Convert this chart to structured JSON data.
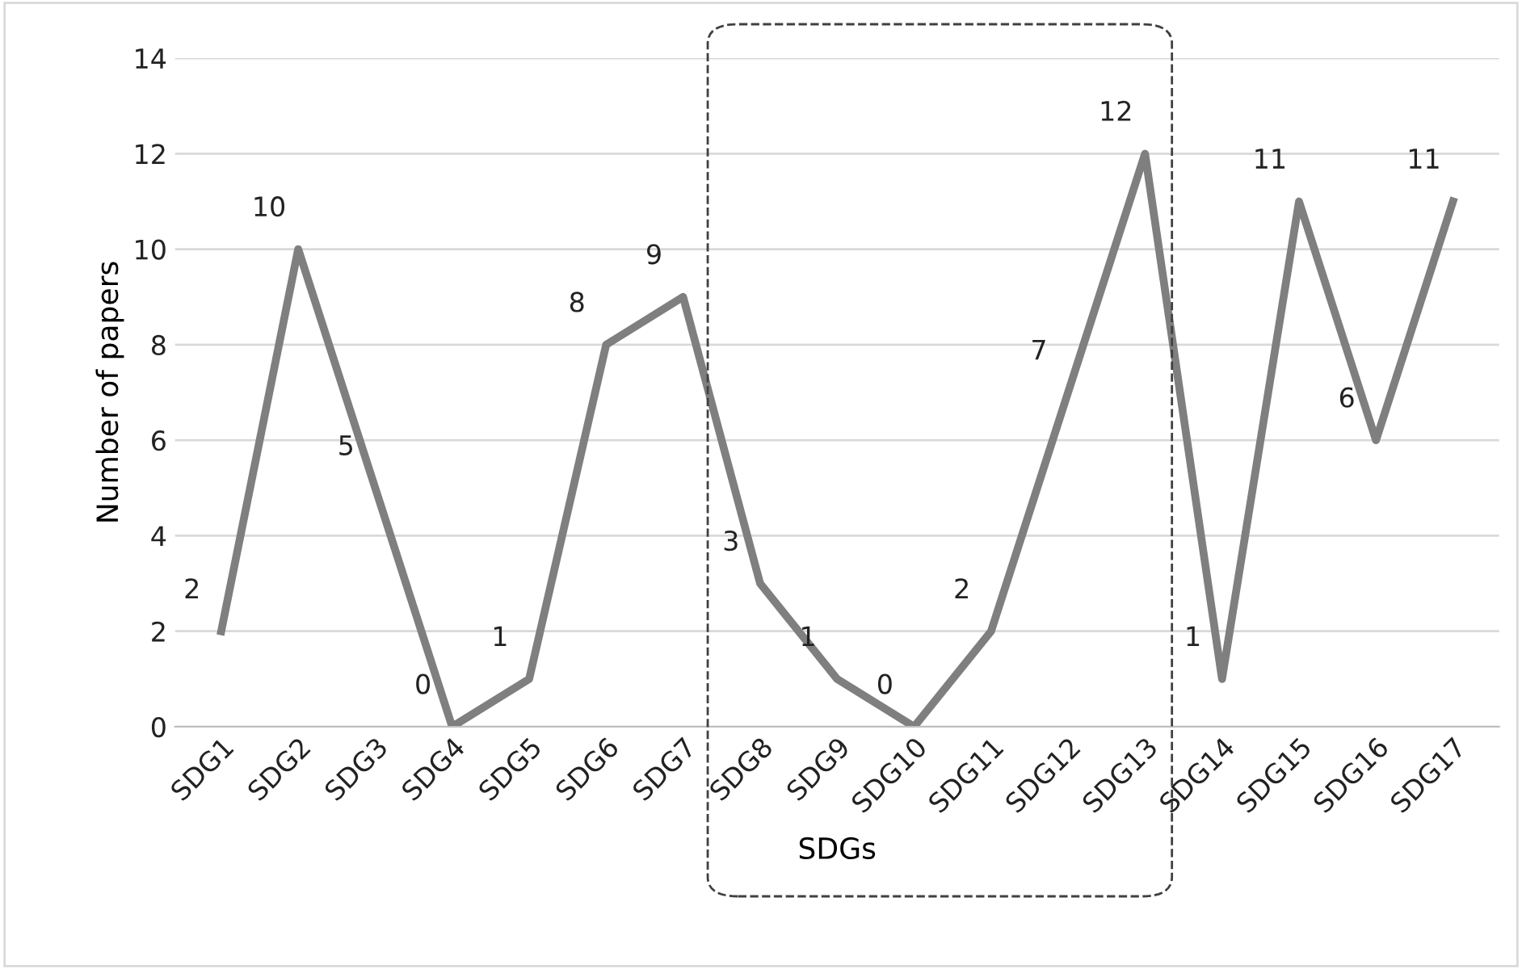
{
  "chart_data": {
    "type": "line",
    "xlabel": "SDGs",
    "ylabel": "Number of papers",
    "categories": [
      "SDG1",
      "SDG2",
      "SDG3",
      "SDG4",
      "SDG5",
      "SDG6",
      "SDG7",
      "SDG8",
      "SDG9",
      "SDG10",
      "SDG11",
      "SDG12",
      "SDG13",
      "SDG14",
      "SDG15",
      "SDG16",
      "SDG17"
    ],
    "series": [
      {
        "color": "#7f7f7f",
        "values": [
          2,
          10,
          5,
          0,
          1,
          8,
          9,
          3,
          1,
          0,
          2,
          7,
          12,
          1,
          11,
          6,
          11
        ]
      }
    ],
    "ylim": [
      0,
      14
    ],
    "yticks": [
      0,
      2,
      4,
      6,
      8,
      10,
      12,
      14
    ],
    "grid": "y",
    "data_labels": true,
    "marker": "none",
    "line_style": "solid"
  }
}
